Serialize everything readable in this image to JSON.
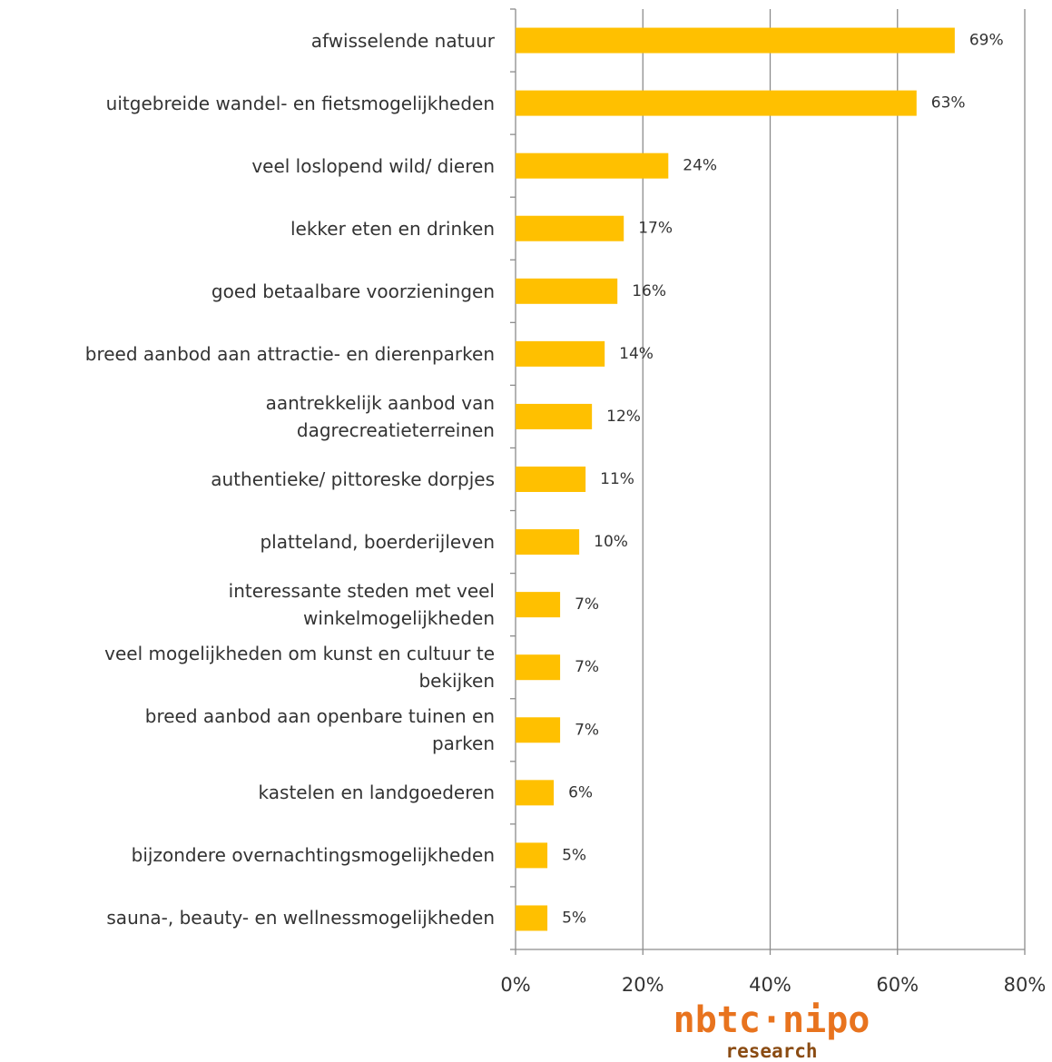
{
  "chart_data": {
    "type": "barh",
    "categories": [
      "afwisselende natuur",
      "uitgebreide wandel- en fietsmogelijkheden",
      "veel loslopend wild/ dieren",
      "lekker eten en drinken",
      "goed betaalbare voorzieningen",
      "breed aanbod aan attractie- en dierenparken",
      "aantrekkelijk aanbod van\ndagrecreatieterreinen",
      "authentieke/ pittoreske dorpjes",
      "platteland, boerderijleven",
      "interessante steden met veel\nwinkelmogelijkheden",
      "veel mogelijkheden om kunst en cultuur te\nbekijken",
      "breed aanbod aan openbare tuinen en\nparken",
      "kastelen en landgoederen",
      "bijzondere overnachtingsmogelijkheden",
      "sauna-, beauty- en wellnessmogelijkheden"
    ],
    "values": [
      69,
      63,
      24,
      17,
      16,
      14,
      12,
      11,
      10,
      7,
      7,
      7,
      6,
      5,
      5
    ],
    "value_labels": [
      "69%",
      "63%",
      "24%",
      "17%",
      "16%",
      "14%",
      "12%",
      "11%",
      "10%",
      "7%",
      "7%",
      "7%",
      "6%",
      "5%",
      "5%"
    ],
    "color": "#ffc000",
    "xlim": [
      0,
      80
    ],
    "xticks": [
      {
        "value": 0,
        "label": "0%"
      },
      {
        "value": 20,
        "label": "20%"
      },
      {
        "value": 40,
        "label": "40%"
      },
      {
        "value": 60,
        "label": "60%"
      },
      {
        "value": 80,
        "label": "80%"
      }
    ],
    "grid": true,
    "logo_text": [
      "nbtc·nipo",
      "research"
    ]
  }
}
